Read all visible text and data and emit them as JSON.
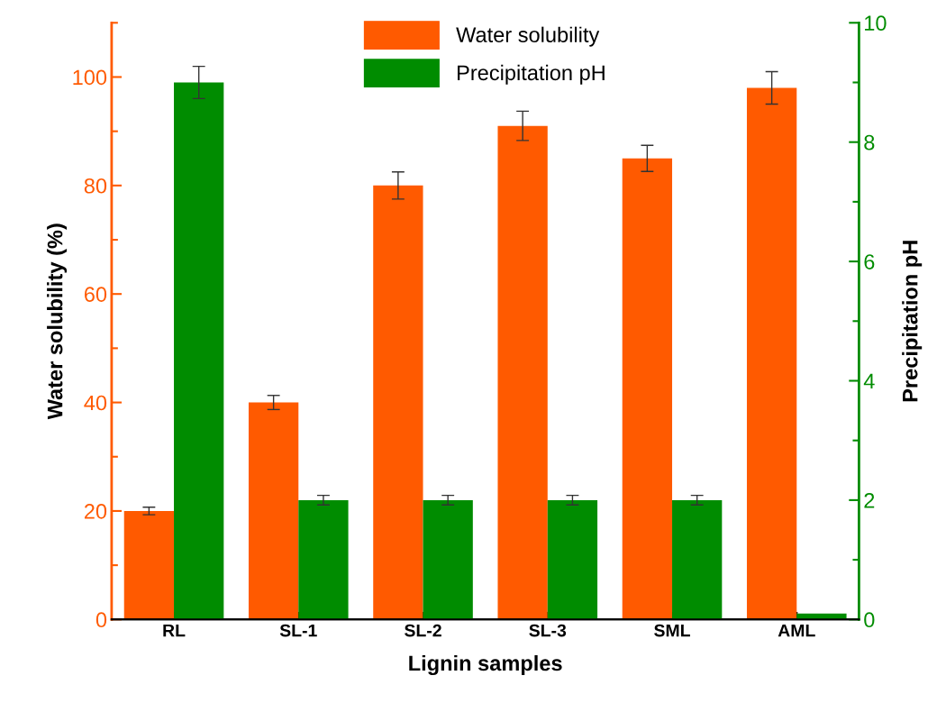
{
  "chart_data": {
    "type": "bar",
    "xlabel": "Lignin samples",
    "ylabel": "Water solubility (%)",
    "y2label": "Precipitation pH",
    "categories": [
      "RL",
      "SL-1",
      "SL-2",
      "SL-3",
      "SML",
      "AML"
    ],
    "series": [
      {
        "name": "Water solubility",
        "color": "#ff5a00",
        "values": [
          20,
          40,
          80,
          91,
          85,
          98
        ],
        "errors": [
          0.7,
          1.3,
          2.5,
          2.7,
          2.4,
          3.0
        ]
      },
      {
        "name": "Precipitation pH",
        "color": "#008c00",
        "axis": "y2",
        "values": [
          9.0,
          2.0,
          2.0,
          2.0,
          2.0,
          0.1
        ],
        "errors": [
          0.27,
          0.08,
          0.08,
          0.08,
          0.08,
          null
        ]
      }
    ],
    "ylim": [
      0,
      110
    ],
    "yticks": [
      0,
      20,
      40,
      60,
      80,
      100
    ],
    "y2lim": [
      0,
      10
    ],
    "y2ticks": [
      0,
      2,
      4,
      6,
      8,
      10
    ],
    "legend": "top",
    "grid": false
  }
}
